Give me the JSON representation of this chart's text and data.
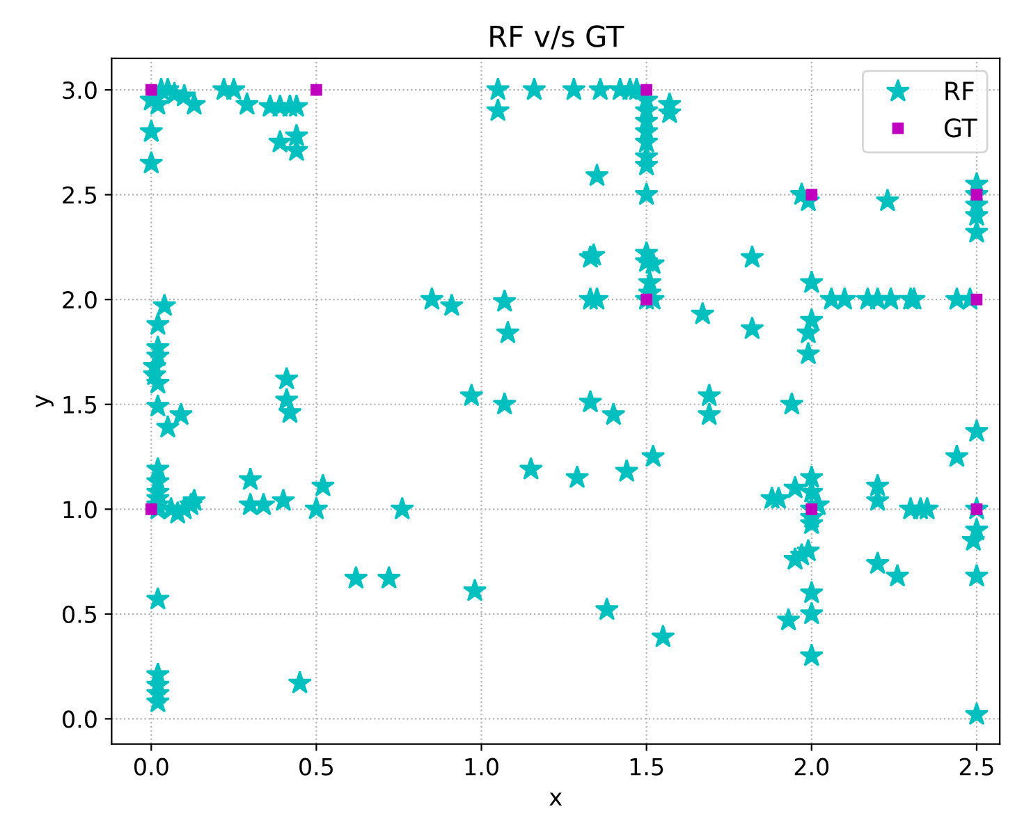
{
  "chart_data": {
    "type": "scatter",
    "title": "RF v/s GT",
    "xlabel": "x",
    "ylabel": "y",
    "xlim": [
      -0.12,
      2.57
    ],
    "ylim": [
      -0.12,
      3.15
    ],
    "xticks": [
      {
        "value": 0,
        "label": "0.0"
      },
      {
        "value": 0.5,
        "label": "0.5"
      },
      {
        "value": 1,
        "label": "1.0"
      },
      {
        "value": 1.5,
        "label": "1.5"
      },
      {
        "value": 2,
        "label": "2.0"
      },
      {
        "value": 2.5,
        "label": "2.5"
      }
    ],
    "yticks": [
      {
        "value": 0,
        "label": "0.0"
      },
      {
        "value": 0.5,
        "label": "0.5"
      },
      {
        "value": 1,
        "label": "1.0"
      },
      {
        "value": 1.5,
        "label": "1.5"
      },
      {
        "value": 2,
        "label": "2.0"
      },
      {
        "value": 2.5,
        "label": "2.5"
      },
      {
        "value": 3,
        "label": "3.0"
      }
    ],
    "grid": true,
    "legend": "top right",
    "series": [
      {
        "name": "RF",
        "color": "#00bfbf",
        "marker": "star",
        "x": [
          0,
          0.02,
          0.03,
          0.05,
          0.07,
          0.1,
          0.13,
          0.22,
          0.25,
          0.29,
          0.36,
          0.39,
          0.42,
          0.44,
          0.39,
          0.44,
          0.44,
          0,
          0,
          0.04,
          0.02,
          0.02,
          0.02,
          0.01,
          0.01,
          0.02,
          0.02,
          0.09,
          0.05,
          0.02,
          0.02,
          0.02,
          0.02,
          0.02,
          0.02,
          0.02,
          0.02,
          0.02,
          0.02,
          0.02,
          0.06,
          0.08,
          0.1,
          0.12,
          0.13,
          0.3,
          0.3,
          0.34,
          0.4,
          0.41,
          0.41,
          0.42,
          0.45,
          0.5,
          0.52,
          0.62,
          0.72,
          0.76,
          0.85,
          0.91,
          0.97,
          0.98,
          1.05,
          1.05,
          1.07,
          1.08,
          1.07,
          1.15,
          1.16,
          1.28,
          1.29,
          1.33,
          1.34,
          1.33,
          1.35,
          1.33,
          1.35,
          1.36,
          1.38,
          1.4,
          1.42,
          1.44,
          1.45,
          1.47,
          1.5,
          1.5,
          1.5,
          1.5,
          1.5,
          1.5,
          1.5,
          1.5,
          1.5,
          1.5,
          1.52,
          1.51,
          1.51,
          1.5,
          1.52,
          1.52,
          1.55,
          1.57,
          1.57,
          1.67,
          1.69,
          1.69,
          1.82,
          1.82,
          1.88,
          1.9,
          1.93,
          1.94,
          1.95,
          1.95,
          1.97,
          1.97,
          1.99,
          1.99,
          1.99,
          2.0,
          2.0,
          2.0,
          2.0,
          2.0,
          2.0,
          2.0,
          1.99,
          2.0,
          2.0,
          2.0,
          2.02,
          2.06,
          2.1,
          2.17,
          2.2,
          2.2,
          2.2,
          2.2,
          2.23,
          2.24,
          2.26,
          2.3,
          2.31,
          2.3,
          2.33,
          2.35,
          2.44,
          2.44,
          2.48,
          2.5,
          2.5,
          2.5,
          2.5,
          2.5,
          2.5,
          2.5,
          2.5,
          2.49,
          2.5,
          2.5
        ],
        "values": [
          2.95,
          2.93,
          3.0,
          3.0,
          2.98,
          2.97,
          2.93,
          3.0,
          3.0,
          2.93,
          2.92,
          2.92,
          2.92,
          2.92,
          2.75,
          2.78,
          2.71,
          2.8,
          2.65,
          1.97,
          1.88,
          1.77,
          1.73,
          1.68,
          1.64,
          1.6,
          1.49,
          1.45,
          1.39,
          1.19,
          1.13,
          1.08,
          1.05,
          1.02,
          1.0,
          0.57,
          0.21,
          0.16,
          0.12,
          0.08,
          1.0,
          0.98,
          1.0,
          1.02,
          1.04,
          1.14,
          1.02,
          1.02,
          1.04,
          1.62,
          1.52,
          1.46,
          0.17,
          1.0,
          1.11,
          0.67,
          0.67,
          1.0,
          2.0,
          1.97,
          1.54,
          0.61,
          3.0,
          2.9,
          1.99,
          1.84,
          1.5,
          1.19,
          3.0,
          3.0,
          1.15,
          2.2,
          2.21,
          2.0,
          2.0,
          1.51,
          2.59,
          3.0,
          0.52,
          1.45,
          3.0,
          1.18,
          3.0,
          3.0,
          2.95,
          2.9,
          2.85,
          2.8,
          2.75,
          2.68,
          2.64,
          2.5,
          2.22,
          2.18,
          2.17,
          2.08,
          2.03,
          2.0,
          2.0,
          1.25,
          0.39,
          2.93,
          2.89,
          1.93,
          1.54,
          1.45,
          2.2,
          1.86,
          1.05,
          1.05,
          0.47,
          1.5,
          1.1,
          0.76,
          0.78,
          2.5,
          2.47,
          1.84,
          1.74,
          2.08,
          1.9,
          1.15,
          1.08,
          1.0,
          0.96,
          0.93,
          0.8,
          0.6,
          0.5,
          0.3,
          1.02,
          2.0,
          2.0,
          2.0,
          2.0,
          1.11,
          1.04,
          0.74,
          2.47,
          2.0,
          0.68,
          2.0,
          2.0,
          1.0,
          1.0,
          1.0,
          2.0,
          1.25,
          2.0,
          2.55,
          2.5,
          2.45,
          2.4,
          2.32,
          1.37,
          1.0,
          0.9,
          0.85,
          0.68,
          0.02
        ]
      },
      {
        "name": "GT",
        "color": "#bf00bf",
        "marker": "square",
        "x": [
          0,
          0.5,
          1.5,
          1.5,
          2,
          2.5,
          2.5,
          2,
          2.5,
          0
        ],
        "values": [
          3,
          3,
          3,
          2,
          2.5,
          2.5,
          2,
          1,
          1,
          1
        ]
      }
    ]
  }
}
